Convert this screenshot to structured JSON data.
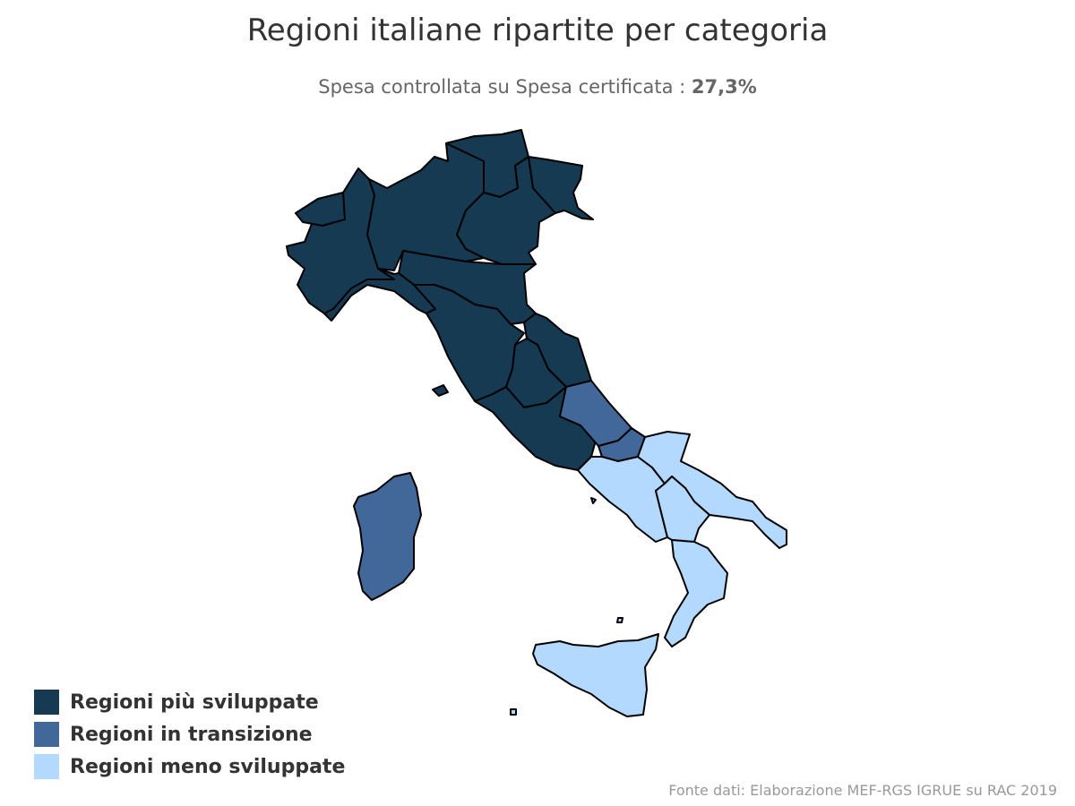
{
  "title": "Regioni italiane ripartite per categoria",
  "subtitle": {
    "label": "Spesa controllata su Spesa certificata : ",
    "value": "27,3%"
  },
  "colors": {
    "more_developed": "#163a52",
    "transition": "#416899",
    "less_developed": "#b3d9ff"
  },
  "legend": [
    {
      "label": "Regioni più sviluppate",
      "color": "#163a52"
    },
    {
      "label": "Regioni in transizione",
      "color": "#416899"
    },
    {
      "label": "Regioni meno sviluppate",
      "color": "#b3d9ff"
    }
  ],
  "regions": {
    "more_developed": [
      "Piemonte",
      "Valle d'Aosta",
      "Lombardia",
      "Trentino-Alto Adige",
      "Veneto",
      "Friuli-Venezia Giulia",
      "Liguria",
      "Emilia-Romagna",
      "Toscana",
      "Umbria",
      "Marche",
      "Lazio"
    ],
    "transition": [
      "Abruzzo",
      "Molise",
      "Sardegna"
    ],
    "less_developed": [
      "Campania",
      "Puglia",
      "Basilicata",
      "Calabria",
      "Sicilia"
    ]
  },
  "credits": "Fonte dati: Elaborazione MEF-RGS IGRUE su RAC 2019"
}
